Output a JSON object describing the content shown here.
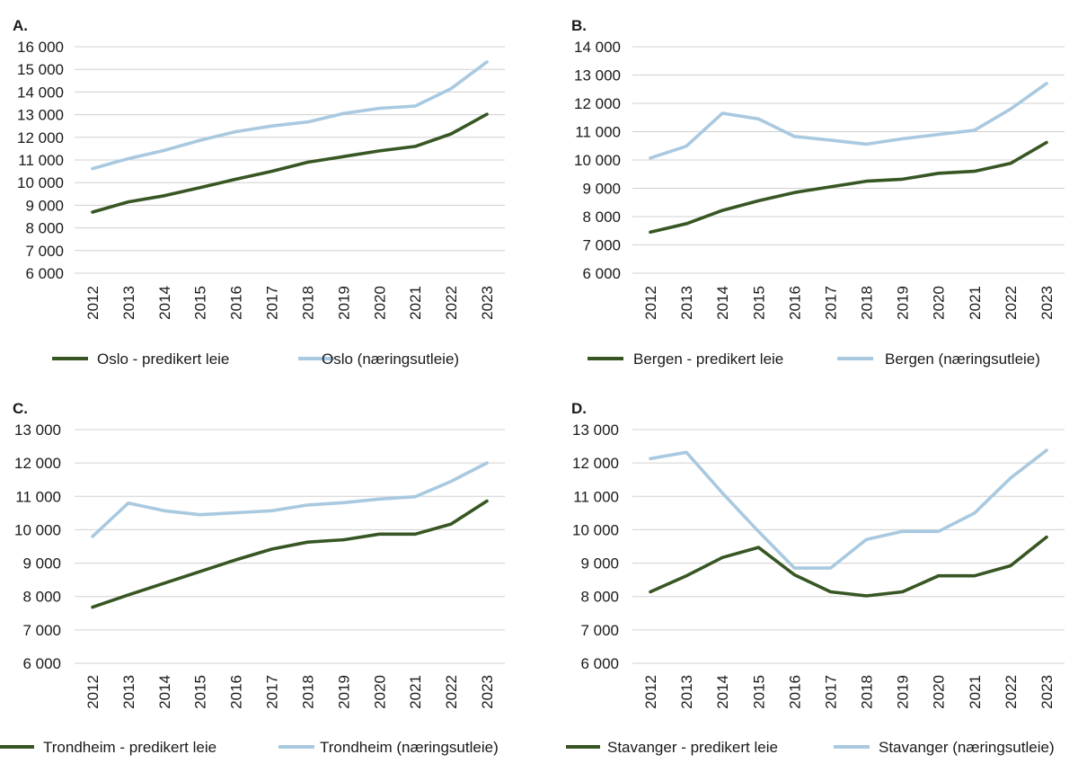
{
  "colors": {
    "predicted": "#375623",
    "commercial": "#a9c9e0",
    "grid": "#d0d0d0",
    "text": "#1a1a1a"
  },
  "chart_data": [
    {
      "type": "line",
      "panel_label": "A.",
      "categories": [
        "2012",
        "2013",
        "2014",
        "2015",
        "2016",
        "2017",
        "2018",
        "2019",
        "2020",
        "2021",
        "2022",
        "2023"
      ],
      "ylim": [
        6000,
        16000
      ],
      "yticks": [
        6000,
        7000,
        8000,
        9000,
        10000,
        11000,
        12000,
        13000,
        14000,
        15000,
        16000
      ],
      "ytick_labels": [
        "6 000",
        "7 000",
        "8 000",
        "9 000",
        "10 000",
        "11 000",
        "12 000",
        "13 000",
        "14 000",
        "15 000",
        "16 000"
      ],
      "grid": true,
      "legend_position": "bottom",
      "series": [
        {
          "name": "Oslo - predikert leie",
          "color_key": "predicted",
          "values": [
            8700,
            9150,
            9420,
            9780,
            10150,
            10500,
            10900,
            11150,
            11400,
            11600,
            12150,
            13020
          ]
        },
        {
          "name": "Oslo (næringsutleie)",
          "color_key": "commercial",
          "values": [
            10620,
            11060,
            11420,
            11870,
            12250,
            12500,
            12680,
            13050,
            13280,
            13380,
            14150,
            15330
          ]
        }
      ]
    },
    {
      "type": "line",
      "panel_label": "B.",
      "categories": [
        "2012",
        "2013",
        "2014",
        "2015",
        "2016",
        "2017",
        "2018",
        "2019",
        "2020",
        "2021",
        "2022",
        "2023"
      ],
      "ylim": [
        6000,
        14000
      ],
      "yticks": [
        6000,
        7000,
        8000,
        9000,
        10000,
        11000,
        12000,
        13000,
        14000
      ],
      "ytick_labels": [
        "6 000",
        "7 000",
        "8 000",
        "9 000",
        "10 000",
        "11 000",
        "12 000",
        "13 000",
        "14 000"
      ],
      "grid": true,
      "legend_position": "bottom",
      "series": [
        {
          "name": "Bergen - predikert leie",
          "color_key": "predicted",
          "values": [
            7450,
            7750,
            8220,
            8560,
            8850,
            9050,
            9250,
            9320,
            9530,
            9600,
            9880,
            10620
          ]
        },
        {
          "name": "Bergen (næringsutleie)",
          "color_key": "commercial",
          "values": [
            10070,
            10490,
            11650,
            11450,
            10830,
            10700,
            10560,
            10750,
            10900,
            11050,
            11800,
            12700
          ]
        }
      ]
    },
    {
      "type": "line",
      "panel_label": "C.",
      "categories": [
        "2012",
        "2013",
        "2014",
        "2015",
        "2016",
        "2017",
        "2018",
        "2019",
        "2020",
        "2021",
        "2022",
        "2023"
      ],
      "ylim": [
        6000,
        13000
      ],
      "yticks": [
        6000,
        7000,
        8000,
        9000,
        10000,
        11000,
        12000,
        13000
      ],
      "ytick_labels": [
        "6 000",
        "7 000",
        "8 000",
        "9 000",
        "10 000",
        "11 000",
        "12 000",
        "13 000"
      ],
      "grid": true,
      "legend_position": "bottom",
      "series": [
        {
          "name": "Trondheim - predikert leie",
          "color_key": "predicted",
          "values": [
            7680,
            8050,
            8400,
            8750,
            9100,
            9420,
            9630,
            9700,
            9870,
            9870,
            10170,
            10860
          ]
        },
        {
          "name": "Trondheim (næringsutleie)",
          "color_key": "commercial",
          "values": [
            9800,
            10800,
            10570,
            10450,
            10510,
            10570,
            10740,
            10810,
            10920,
            10990,
            11450,
            12000
          ]
        }
      ]
    },
    {
      "type": "line",
      "panel_label": "D.",
      "categories": [
        "2012",
        "2013",
        "2014",
        "2015",
        "2016",
        "2017",
        "2018",
        "2019",
        "2020",
        "2021",
        "2022",
        "2023"
      ],
      "ylim": [
        6000,
        13000
      ],
      "yticks": [
        6000,
        7000,
        8000,
        9000,
        10000,
        11000,
        12000,
        13000
      ],
      "ytick_labels": [
        "6 000",
        "7 000",
        "8 000",
        "9 000",
        "10 000",
        "11 000",
        "12 000",
        "13 000"
      ],
      "grid": true,
      "legend_position": "bottom",
      "series": [
        {
          "name": "Stavanger - predikert leie",
          "color_key": "predicted",
          "values": [
            8140,
            8620,
            9170,
            9470,
            8650,
            8140,
            8020,
            8140,
            8620,
            8620,
            8920,
            9780
          ]
        },
        {
          "name": "Stavanger (næringsutleie)",
          "color_key": "commercial",
          "values": [
            12130,
            12320,
            11100,
            9950,
            8850,
            8850,
            9710,
            9950,
            9950,
            10500,
            11550,
            12380
          ]
        }
      ]
    }
  ]
}
